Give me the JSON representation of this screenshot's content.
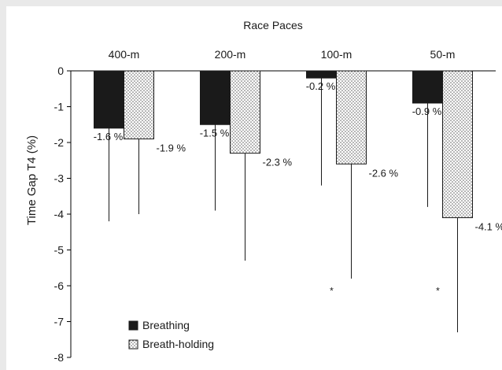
{
  "chart_data": {
    "type": "bar",
    "title": "Race Paces",
    "xlabel": "",
    "ylabel": "Time Gap T4 (%)",
    "categories": [
      "400-m",
      "200-m",
      "100-m",
      "50-m"
    ],
    "ylim": [
      -8,
      0
    ],
    "yticks": [
      "0",
      "-1",
      "-2",
      "-3",
      "-4",
      "-5",
      "-6",
      "-7",
      "-8"
    ],
    "grid": false,
    "legend_position": "bottom-left",
    "series": [
      {
        "name": "Breathing",
        "color": "#1a1a1a",
        "fill": "solid",
        "values": [
          -1.6,
          -1.5,
          -0.2,
          -0.9
        ],
        "labels": [
          "-1.6 %",
          "-1.5 %",
          "-0.2 %",
          "-0.9 %"
        ],
        "error_low": [
          -4.2,
          -3.9,
          -3.2,
          -3.8
        ]
      },
      {
        "name": "Breath-holding",
        "color": "#ffffff",
        "fill": "dotted",
        "values": [
          -1.9,
          -2.3,
          -2.6,
          -4.1
        ],
        "labels": [
          "-1.9 %",
          "-2.3 %",
          "-2.6 %",
          "-4.1 %"
        ],
        "error_low": [
          -4.0,
          -5.3,
          -5.8,
          -7.3
        ]
      }
    ],
    "significance": {
      "symbol": "*",
      "categories": [
        "100-m",
        "50-m"
      ],
      "y": -6.1
    }
  }
}
